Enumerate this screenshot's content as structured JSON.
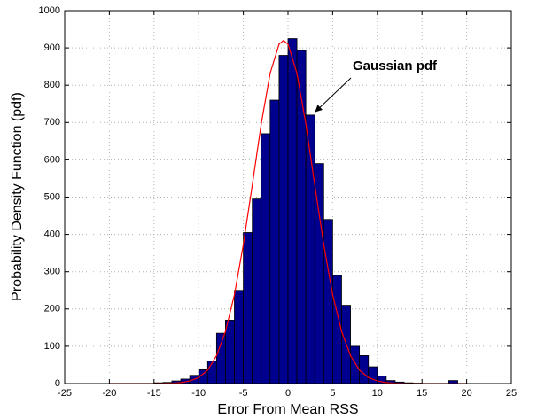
{
  "chart_data": {
    "type": "histogram",
    "xlabel": "Error From Mean RSS",
    "ylabel": "Probability Density Function (pdf)",
    "annotation": "Gaussian pdf",
    "bins": [
      -15,
      -14,
      -13,
      -12,
      -11,
      -10,
      -9,
      -8,
      -7,
      -6,
      -5,
      -4,
      -3,
      -2,
      -1,
      0,
      1,
      2,
      3,
      4,
      5,
      6,
      7,
      8,
      9,
      10,
      11,
      12,
      13,
      14,
      15,
      16,
      17,
      18,
      19
    ],
    "values": [
      2,
      3,
      7,
      12,
      22,
      37,
      60,
      135,
      170,
      250,
      405,
      495,
      670,
      760,
      880,
      925,
      893,
      720,
      590,
      440,
      290,
      210,
      100,
      75,
      45,
      20,
      8,
      4,
      2,
      1,
      0,
      0,
      0,
      8
    ],
    "color": "#00008f",
    "series": [
      {
        "type": "line",
        "color": "#ff0000",
        "x": [
          -20,
          -15,
          -14,
          -13,
          -12,
          -11,
          -10,
          -9,
          -8,
          -7,
          -6,
          -5,
          -4,
          -3,
          -2,
          -1,
          -0.5,
          0,
          1,
          2,
          3,
          4,
          5,
          6,
          7,
          8,
          9,
          10,
          11,
          12,
          13,
          15,
          20
        ],
        "values": [
          0,
          0,
          0.3,
          1,
          2.5,
          7,
          16,
          36,
          75,
          140,
          238,
          373,
          532,
          696,
          832,
          910,
          920,
          910,
          832,
          696,
          532,
          373,
          238,
          140,
          75,
          36,
          16,
          7,
          2.5,
          1,
          0.3,
          0,
          0
        ]
      }
    ],
    "xlim": [
      -25,
      25
    ],
    "ylim": [
      0,
      1000
    ],
    "xticks": [
      -25,
      -20,
      -15,
      -10,
      -5,
      0,
      5,
      10,
      15,
      20,
      25
    ],
    "yticks": [
      0,
      100,
      200,
      300,
      400,
      500,
      600,
      700,
      800,
      900,
      1000
    ],
    "grid": true
  }
}
